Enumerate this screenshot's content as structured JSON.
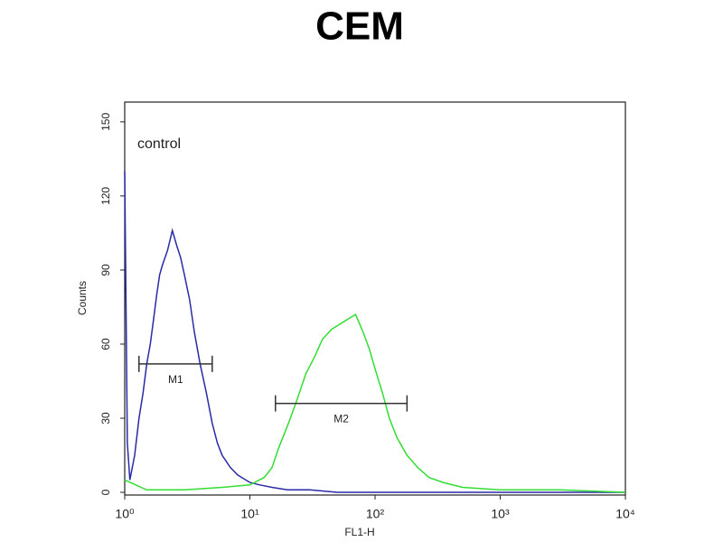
{
  "chart_data": {
    "type": "line",
    "title": "CEM",
    "x_label": "FL1-H",
    "y_label": "Counts",
    "annotation": "control",
    "log_x": true,
    "xlim": [
      1,
      10000
    ],
    "xticks": [
      {
        "value": 1,
        "label": "10⁰"
      },
      {
        "value": 10,
        "label": "10¹"
      },
      {
        "value": 100,
        "label": "10²"
      },
      {
        "value": 1000,
        "label": "10³"
      },
      {
        "value": 10000,
        "label": "10⁴"
      }
    ],
    "ylim": [
      0,
      158
    ],
    "yticks": [
      0,
      30,
      60,
      90,
      120,
      150
    ],
    "series": [
      {
        "color": "#2a2aa8",
        "x": [
          1,
          1.05,
          1.1,
          1.2,
          1.3,
          1.4,
          1.5,
          1.6,
          1.7,
          1.8,
          1.9,
          2.0,
          2.2,
          2.4,
          2.6,
          2.8,
          3.0,
          3.3,
          3.6,
          4.0,
          4.5,
          5.0,
          5.5,
          6,
          7,
          8,
          10,
          12,
          15,
          20,
          30,
          50,
          100,
          1000,
          10000
        ],
        "values": [
          130,
          20,
          5,
          15,
          30,
          40,
          52,
          60,
          70,
          80,
          88,
          92,
          98,
          106,
          100,
          95,
          88,
          78,
          65,
          52,
          40,
          28,
          20,
          15,
          10,
          7,
          4,
          3,
          2,
          1,
          1,
          0,
          0,
          0,
          0
        ]
      },
      {
        "color": "#33dd33",
        "x": [
          1,
          1.5,
          3,
          6,
          10,
          13,
          15,
          17,
          20,
          24,
          28,
          33,
          38,
          45,
          52,
          60,
          70,
          80,
          90,
          100,
          115,
          130,
          150,
          180,
          220,
          270,
          350,
          500,
          1000,
          3000,
          10000
        ],
        "values": [
          5,
          1,
          1,
          2,
          3,
          6,
          10,
          18,
          27,
          38,
          48,
          55,
          62,
          66,
          68,
          70,
          72,
          65,
          58,
          50,
          40,
          30,
          22,
          15,
          10,
          6,
          4,
          2,
          1,
          1,
          0
        ]
      }
    ],
    "markers": [
      {
        "label": "M1",
        "x": [
          1.3,
          5
        ],
        "y": 52
      },
      {
        "label": "M2",
        "x": [
          16,
          180
        ],
        "y": 36
      }
    ]
  }
}
